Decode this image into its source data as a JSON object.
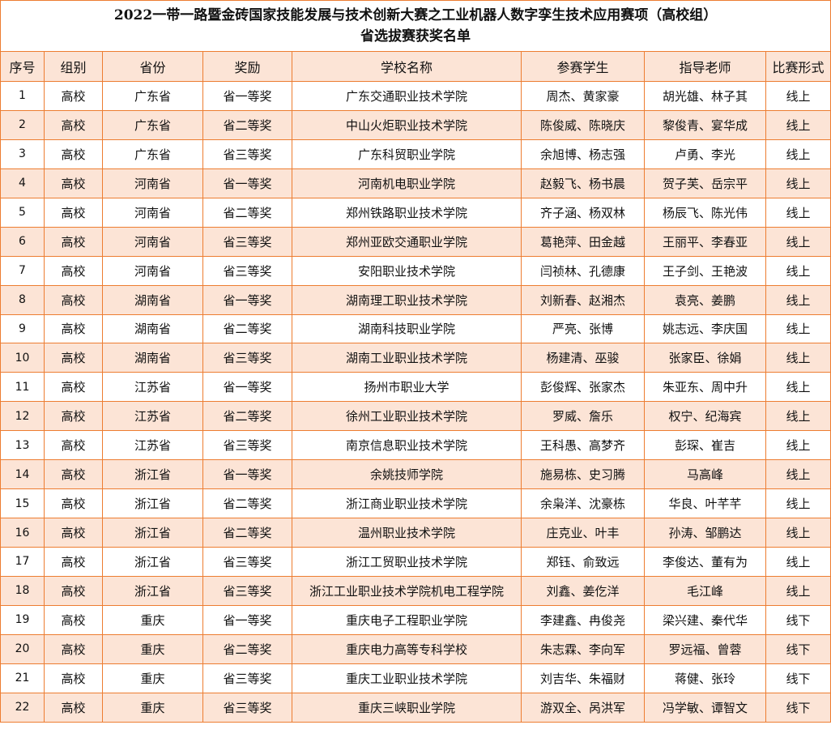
{
  "title_line1": "2022一带一路暨金砖国家技能发展与技术创新大赛之工业机器人数字孪生技术应用赛项（高校组）",
  "title_line2": "省选拔赛获奖名单",
  "colors": {
    "border": "#ED7D31",
    "stripe": "#FCE4D6"
  },
  "columns": [
    "序号",
    "组别",
    "省份",
    "奖励",
    "学校名称",
    "参赛学生",
    "指导老师",
    "比赛形式"
  ],
  "rows": [
    [
      "1",
      "高校",
      "广东省",
      "省一等奖",
      "广东交通职业技术学院",
      "周杰、黄家豪",
      "胡光雄、林子其",
      "线上"
    ],
    [
      "2",
      "高校",
      "广东省",
      "省二等奖",
      "中山火炬职业技术学院",
      "陈俊威、陈晓庆",
      "黎俊青、宴华成",
      "线上"
    ],
    [
      "3",
      "高校",
      "广东省",
      "省三等奖",
      "广东科贸职业学院",
      "余旭博、杨志强",
      "卢勇、李光",
      "线上"
    ],
    [
      "4",
      "高校",
      "河南省",
      "省一等奖",
      "河南机电职业学院",
      "赵毅飞、杨书晨",
      "贺子芙、岳宗平",
      "线上"
    ],
    [
      "5",
      "高校",
      "河南省",
      "省二等奖",
      "郑州铁路职业技术学院",
      "齐子涵、杨双林",
      "杨辰飞、陈光伟",
      "线上"
    ],
    [
      "6",
      "高校",
      "河南省",
      "省三等奖",
      "郑州亚欧交通职业学院",
      "葛艳萍、田金越",
      "王丽平、李春亚",
      "线上"
    ],
    [
      "7",
      "高校",
      "河南省",
      "省三等奖",
      "安阳职业技术学院",
      "闫祯林、孔德康",
      "王子剑、王艳波",
      "线上"
    ],
    [
      "8",
      "高校",
      "湖南省",
      "省一等奖",
      "湖南理工职业技术学院",
      "刘新春、赵湘杰",
      "袁亮、姜鹏",
      "线上"
    ],
    [
      "9",
      "高校",
      "湖南省",
      "省二等奖",
      "湖南科技职业学院",
      "严亮、张博",
      "姚志远、李庆国",
      "线上"
    ],
    [
      "10",
      "高校",
      "湖南省",
      "省三等奖",
      "湖南工业职业技术学院",
      "杨建清、巫骏",
      "张家臣、徐娟",
      "线上"
    ],
    [
      "11",
      "高校",
      "江苏省",
      "省一等奖",
      "扬州市职业大学",
      "彭俊辉、张家杰",
      "朱亚东、周中升",
      "线上"
    ],
    [
      "12",
      "高校",
      "江苏省",
      "省二等奖",
      "徐州工业职业技术学院",
      "罗威、詹乐",
      "权宁、纪海宾",
      "线上"
    ],
    [
      "13",
      "高校",
      "江苏省",
      "省三等奖",
      "南京信息职业技术学院",
      "王科愚、高梦齐",
      "彭琛、崔吉",
      "线上"
    ],
    [
      "14",
      "高校",
      "浙江省",
      "省一等奖",
      "余姚技师学院",
      "施易栋、史习腾",
      "马高峰",
      "线上"
    ],
    [
      "15",
      "高校",
      "浙江省",
      "省二等奖",
      "浙江商业职业技术学院",
      "余枭洋、沈豪栋",
      "华良、叶芊芊",
      "线上"
    ],
    [
      "16",
      "高校",
      "浙江省",
      "省二等奖",
      "温州职业技术学院",
      "庄克业、叶丰",
      "孙涛、邹鹏达",
      "线上"
    ],
    [
      "17",
      "高校",
      "浙江省",
      "省三等奖",
      "浙江工贸职业技术学院",
      "郑钰、俞致远",
      "李俊达、董有为",
      "线上"
    ],
    [
      "18",
      "高校",
      "浙江省",
      "省三等奖",
      "浙江工业职业技术学院机电工程学院",
      "刘鑫、姜仡洋",
      "毛江峰",
      "线上"
    ],
    [
      "19",
      "高校",
      "重庆",
      "省一等奖",
      "重庆电子工程职业学院",
      "李建鑫、冉俊尧",
      "梁兴建、秦代华",
      "线下"
    ],
    [
      "20",
      "高校",
      "重庆",
      "省二等奖",
      "重庆电力高等专科学校",
      "朱志霖、李向军",
      "罗远福、曾蓉",
      "线下"
    ],
    [
      "21",
      "高校",
      "重庆",
      "省三等奖",
      "重庆工业职业技术学院",
      "刘吉华、朱福财",
      "蒋健、张玲",
      "线下"
    ],
    [
      "22",
      "高校",
      "重庆",
      "省三等奖",
      "重庆三峡职业学院",
      "游双全、呙洪军",
      "冯学敏、谭智文",
      "线下"
    ]
  ]
}
